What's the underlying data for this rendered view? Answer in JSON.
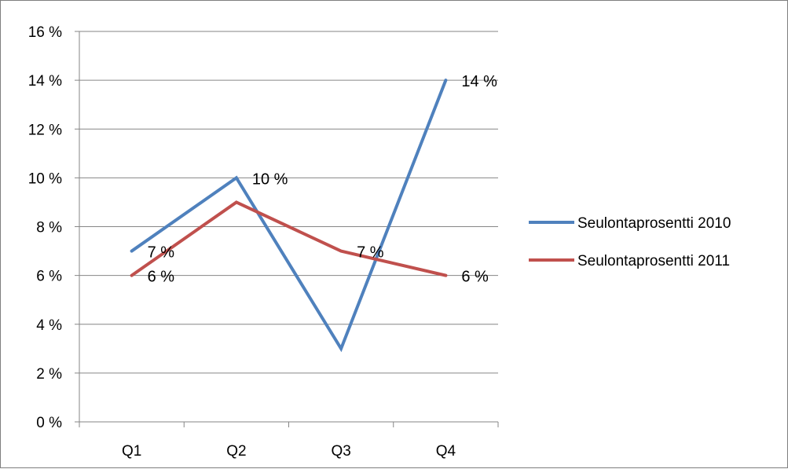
{
  "chart_data": {
    "type": "line",
    "title": "",
    "xlabel": "",
    "ylabel": "",
    "categories": [
      "Q1",
      "Q2",
      "Q3",
      "Q4"
    ],
    "ylim": [
      0,
      16
    ],
    "y_ticks": [
      0,
      2,
      4,
      6,
      8,
      10,
      12,
      14,
      16
    ],
    "y_tick_labels": [
      "0 %",
      "2 %",
      "4 %",
      "6 %",
      "8 %",
      "10 %",
      "12 %",
      "14 %",
      "16 %"
    ],
    "grid": true,
    "legend_position": "right",
    "series": [
      {
        "name": "Seulontaprosentti 2010",
        "color": "#4f81bd",
        "values": [
          7,
          10,
          3,
          14
        ],
        "data_labels": [
          "7 %",
          "10 %",
          "",
          "14 %"
        ]
      },
      {
        "name": "Seulontaprosentti 2011",
        "color": "#c0504d",
        "values": [
          6,
          9,
          7,
          6
        ],
        "data_labels": [
          "6 %",
          "",
          "7 %",
          "6 %"
        ]
      }
    ]
  }
}
